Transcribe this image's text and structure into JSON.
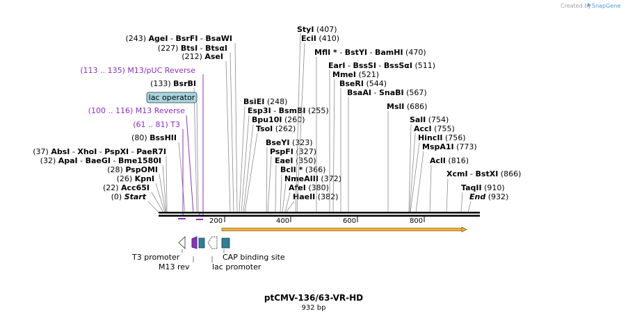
{
  "credit": {
    "prefix": "Created by",
    "brand": "SnapGene"
  },
  "map": {
    "name": "ptCMV-136/63-VR-HD",
    "length_label": "932 bp",
    "length_bp": 932
  },
  "ticks": [
    {
      "bp": 200,
      "label": "200"
    },
    {
      "bp": 400,
      "label": "400"
    },
    {
      "bp": 600,
      "label": "600"
    },
    {
      "bp": 800,
      "label": "800"
    }
  ],
  "sites_left": [
    {
      "pos": "(243)",
      "names": [
        "AgeI",
        "BsrFI",
        "BsaWI"
      ],
      "bp": 243
    },
    {
      "pos": "(227)",
      "names": [
        "BtsI",
        "BtsαI"
      ],
      "bp": 227
    },
    {
      "pos": "(212)",
      "names": [
        "AseI"
      ],
      "bp": 212
    },
    {
      "pos": "(133)",
      "names": [
        "BsrBI"
      ],
      "bp": 133
    },
    {
      "pos": "(80)",
      "names": [
        "BssHII"
      ],
      "bp": 80
    },
    {
      "pos": "(37)",
      "names": [
        "AbsI",
        "XhoI",
        "PspXI",
        "PaeR7I"
      ],
      "bp": 37
    },
    {
      "pos": "(32)",
      "names": [
        "ApaI",
        "BaeGI",
        "Bme1580I"
      ],
      "bp": 32
    },
    {
      "pos": "(28)",
      "names": [
        "PspOMI"
      ],
      "bp": 28
    },
    {
      "pos": "(26)",
      "names": [
        "KpnI"
      ],
      "bp": 26
    },
    {
      "pos": "(22)",
      "names": [
        "Acc65I"
      ],
      "bp": 22
    },
    {
      "pos": "(0)",
      "names": [
        "Start"
      ],
      "bp": 0
    }
  ],
  "sites_right": [
    {
      "names": [
        "StyI"
      ],
      "pos": "(407)",
      "bp": 407
    },
    {
      "names": [
        "EciI"
      ],
      "pos": "(410)",
      "bp": 410
    },
    {
      "names": [
        "MflI *",
        "BstYI",
        "BamHI"
      ],
      "pos": "(470)",
      "bp": 470
    },
    {
      "names": [
        "EarI",
        "BssSI",
        "BssSαI"
      ],
      "pos": "(511)",
      "bp": 511
    },
    {
      "names": [
        "MmeI"
      ],
      "pos": "(521)",
      "bp": 521
    },
    {
      "names": [
        "BseRI"
      ],
      "pos": "(544)",
      "bp": 544
    },
    {
      "names": [
        "BsaAI",
        "SnaBI"
      ],
      "pos": "(567)",
      "bp": 567
    },
    {
      "names": [
        "MslI"
      ],
      "pos": "(686)",
      "bp": 686
    },
    {
      "names": [
        "BsiEI"
      ],
      "pos": "(248)",
      "bp": 248
    },
    {
      "names": [
        "Esp3I",
        "BsmBI"
      ],
      "pos": "(255)",
      "bp": 255
    },
    {
      "names": [
        "Bpu10I"
      ],
      "pos": "(260)",
      "bp": 260
    },
    {
      "names": [
        "TsoI"
      ],
      "pos": "(262)",
      "bp": 262
    },
    {
      "names": [
        "BseYI"
      ],
      "pos": "(323)",
      "bp": 323
    },
    {
      "names": [
        "PspFI"
      ],
      "pos": "(327)",
      "bp": 327
    },
    {
      "names": [
        "EaeI"
      ],
      "pos": "(350)",
      "bp": 350
    },
    {
      "names": [
        "BclI *"
      ],
      "pos": "(366)",
      "bp": 366
    },
    {
      "names": [
        "NmeAIII"
      ],
      "pos": "(372)",
      "bp": 372
    },
    {
      "names": [
        "AfeI"
      ],
      "pos": "(380)",
      "bp": 380
    },
    {
      "names": [
        "HaeII"
      ],
      "pos": "(382)",
      "bp": 382
    },
    {
      "names": [
        "SalI"
      ],
      "pos": "(754)",
      "bp": 754
    },
    {
      "names": [
        "AccI"
      ],
      "pos": "(755)",
      "bp": 755
    },
    {
      "names": [
        "HincII"
      ],
      "pos": "(756)",
      "bp": 756
    },
    {
      "names": [
        "MspA1I"
      ],
      "pos": "(773)",
      "bp": 773
    },
    {
      "names": [
        "AclI"
      ],
      "pos": "(816)",
      "bp": 816
    },
    {
      "names": [
        "XcmI",
        "BstXI"
      ],
      "pos": "(866)",
      "bp": 866
    },
    {
      "names": [
        "TaqII"
      ],
      "pos": "(910)",
      "bp": 910
    },
    {
      "names": [
        "End"
      ],
      "pos": "(932)",
      "bp": 932
    }
  ],
  "primers": [
    {
      "label": "(113 .. 135)  M13/pUC Reverse",
      "start_bp": 113,
      "end_bp": 135
    },
    {
      "label": "(100 .. 116)  M13 Reverse",
      "start_bp": 100,
      "end_bp": 116
    },
    {
      "label": "(61 .. 81)  T3",
      "start_bp": 61,
      "end_bp": 81
    }
  ],
  "lac_operator": {
    "label": "lac operator"
  },
  "features": {
    "t3_promoter": "T3 promoter",
    "m13_rev": "M13 rev",
    "lac_promoter": "lac promoter",
    "cap_site": "CAP binding site"
  },
  "colors": {
    "primer": "#8e2ec4",
    "operator_fill": "#a7d6e0",
    "cap_fill": "#2e7f96",
    "orf_fill": "#f3b03b"
  }
}
